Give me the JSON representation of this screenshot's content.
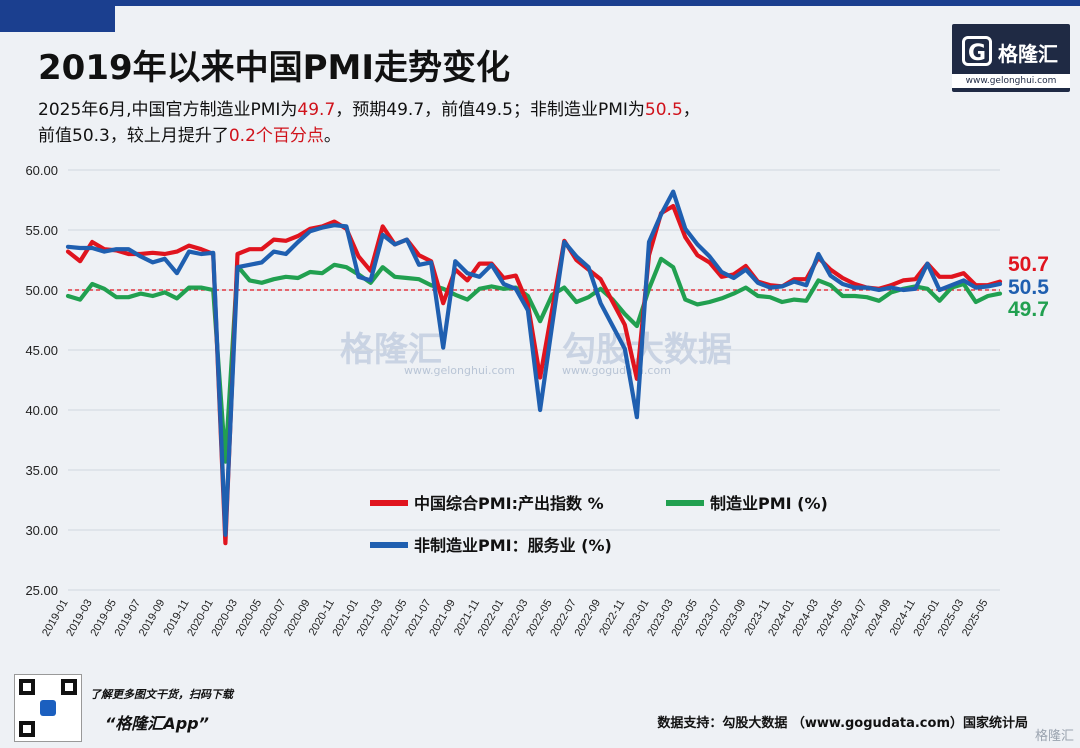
{
  "page": {
    "title": "2019年以来中国PMI走势变化",
    "subtitle_parts": [
      {
        "text": "2025年6月,中国官方制造业PMI为",
        "hl": false
      },
      {
        "text": "49.7",
        "hl": true
      },
      {
        "text": "，预期49.7，前值49.5；非制造业PMI为",
        "hl": false
      },
      {
        "text": "50.5",
        "hl": true
      },
      {
        "text": "，",
        "hl": false
      }
    ],
    "subtitle_line2_parts": [
      {
        "text": "前值50.3，较上月提升了",
        "hl": false
      },
      {
        "text": "0.2个百分点",
        "hl": true
      },
      {
        "text": "。",
        "hl": false
      }
    ],
    "logo_name": "格隆汇",
    "logo_url": "www.gelonghui.com",
    "watermark_1": "格隆汇",
    "watermark_1_url": "www.gelonghui.com",
    "watermark_2": "勾股大数据",
    "watermark_2_url": "www.gogudata.com",
    "footer_note": "了解更多图文干货，扫码下载",
    "footer_app": "“格隆汇App”",
    "footer_source": "数据支持：勾股大数据 （www.gogudata.com）国家统计局",
    "corner_mark": "格隆汇"
  },
  "colors": {
    "composite": "#e0141e",
    "manufacturing": "#21a050",
    "nonmanufacturing": "#1f5fb0",
    "ref_line": "#e0141e",
    "grid": "#d0d6de"
  },
  "chart_data": {
    "type": "line",
    "ylim": [
      25,
      60
    ],
    "yticks": [
      "60.00",
      "55.00",
      "50.00",
      "45.00",
      "40.00",
      "35.00",
      "30.00",
      "25.00"
    ],
    "reference_line": 50,
    "x_tick_labels": [
      "2019-01",
      "2019-03",
      "2019-05",
      "2019-07",
      "2019-09",
      "2019-11",
      "2020-01",
      "2020-03",
      "2020-05",
      "2020-07",
      "2020-09",
      "2020-11",
      "2021-01",
      "2021-03",
      "2021-05",
      "2021-07",
      "2021-09",
      "2021-11",
      "2022-01",
      "2022-03",
      "2022-05",
      "2022-07",
      "2022-09",
      "2022-11",
      "2023-01",
      "2023-03",
      "2023-05",
      "2023-07",
      "2023-09",
      "2023-11",
      "2024-01",
      "2024-03",
      "2024-05",
      "2024-07",
      "2024-09",
      "2024-11",
      "2025-01",
      "2025-03",
      "2025-05"
    ],
    "x_start": "2019-01",
    "x_end": "2025-06",
    "legend": [
      "中国综合PMI:产出指数 %",
      "制造业PMI (%)",
      "非制造业PMI：服务业 (%)"
    ],
    "end_labels": {
      "composite": "50.7",
      "nonmanufacturing": "50.5",
      "manufacturing": "49.7"
    },
    "series": [
      {
        "name": "中国综合PMI:产出指数 %",
        "key": "composite",
        "values": [
          53.2,
          52.4,
          54.0,
          53.4,
          53.3,
          53.0,
          53.0,
          53.1,
          53.0,
          53.2,
          53.7,
          53.4,
          53.0,
          28.9,
          53.0,
          53.4,
          53.4,
          54.2,
          54.1,
          54.5,
          55.1,
          55.3,
          55.7,
          55.1,
          52.8,
          51.6,
          55.3,
          53.8,
          54.2,
          52.9,
          52.4,
          48.9,
          51.7,
          50.8,
          52.2,
          52.2,
          51.0,
          51.2,
          48.8,
          42.7,
          48.4,
          54.1,
          52.5,
          51.7,
          50.9,
          49.0,
          47.1,
          42.6,
          52.9,
          56.4,
          57.0,
          54.4,
          52.9,
          52.3,
          51.1,
          51.3,
          52.0,
          50.7,
          50.4,
          50.3,
          50.9,
          50.9,
          52.7,
          51.7,
          51.0,
          50.5,
          50.2,
          50.1,
          50.4,
          50.8,
          50.9,
          52.2,
          51.1,
          51.1,
          51.4,
          50.4,
          50.4,
          50.7
        ]
      },
      {
        "name": "制造业PMI (%)",
        "key": "manufacturing",
        "values": [
          49.5,
          49.2,
          50.5,
          50.1,
          49.4,
          49.4,
          49.7,
          49.5,
          49.8,
          49.3,
          50.2,
          50.2,
          50.0,
          35.7,
          52.0,
          50.8,
          50.6,
          50.9,
          51.1,
          51.0,
          51.5,
          51.4,
          52.1,
          51.9,
          51.3,
          50.6,
          51.9,
          51.1,
          51.0,
          50.9,
          50.4,
          50.1,
          49.6,
          49.2,
          50.1,
          50.3,
          50.1,
          50.2,
          49.5,
          47.4,
          49.6,
          50.2,
          49.0,
          49.4,
          50.1,
          49.2,
          48.0,
          47.0,
          50.1,
          52.6,
          51.9,
          49.2,
          48.8,
          49.0,
          49.3,
          49.7,
          50.2,
          49.5,
          49.4,
          49.0,
          49.2,
          49.1,
          50.8,
          50.4,
          49.5,
          49.5,
          49.4,
          49.1,
          49.8,
          50.1,
          50.3,
          50.1,
          49.1,
          50.2,
          50.5,
          49.0,
          49.5,
          49.7
        ]
      },
      {
        "name": "非制造业PMI：服务业 (%)",
        "key": "nonmanufacturing",
        "values": [
          53.6,
          53.5,
          53.5,
          53.2,
          53.4,
          53.4,
          52.8,
          52.3,
          52.6,
          51.4,
          53.2,
          53.0,
          53.1,
          29.6,
          51.9,
          52.1,
          52.3,
          53.2,
          53.0,
          54.0,
          54.9,
          55.2,
          55.4,
          55.3,
          51.1,
          50.8,
          54.6,
          53.8,
          54.2,
          52.1,
          52.3,
          45.2,
          52.4,
          51.4,
          51.1,
          52.1,
          50.5,
          50.1,
          48.3,
          40.0,
          47.1,
          54.0,
          52.8,
          51.9,
          48.9,
          47.0,
          45.1,
          39.4,
          54.0,
          56.3,
          58.2,
          55.1,
          53.8,
          52.8,
          51.5,
          51.0,
          51.7,
          50.6,
          50.2,
          50.3,
          50.7,
          50.4,
          53.0,
          51.2,
          50.5,
          50.2,
          50.2,
          50.0,
          50.2,
          50.0,
          50.1,
          52.2,
          50.0,
          50.4,
          50.8,
          50.2,
          50.3,
          50.5
        ]
      }
    ]
  }
}
